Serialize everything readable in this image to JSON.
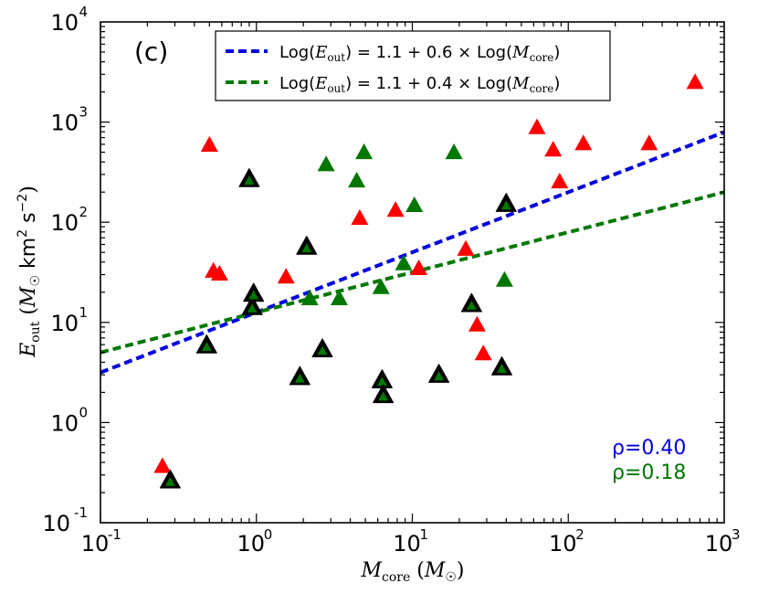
{
  "chart_data": {
    "type": "scatter",
    "panel_label": "(c)",
    "xlabel": "M_core (M_sun)",
    "ylabel": "E_out (M_sun km^2 s^-2)",
    "xscale": "log",
    "yscale": "log",
    "xlim": [
      0.1,
      1000
    ],
    "ylim": [
      0.1,
      10000
    ],
    "x_ticks": [
      {
        "base": "10",
        "exp": "-1",
        "value": 0.1
      },
      {
        "base": "10",
        "exp": "0",
        "value": 1
      },
      {
        "base": "10",
        "exp": "1",
        "value": 10
      },
      {
        "base": "10",
        "exp": "2",
        "value": 100
      },
      {
        "base": "10",
        "exp": "3",
        "value": 1000
      }
    ],
    "y_ticks": [
      {
        "base": "10",
        "exp": "-1",
        "value": 0.1
      },
      {
        "base": "10",
        "exp": "0",
        "value": 1
      },
      {
        "base": "10",
        "exp": "1",
        "value": 10
      },
      {
        "base": "10",
        "exp": "2",
        "value": 100
      },
      {
        "base": "10",
        "exp": "3",
        "value": 1000
      },
      {
        "base": "10",
        "exp": "4",
        "value": 10000
      }
    ],
    "legend_position": "top-center",
    "legend": [
      {
        "label": "Log(E_out) = 1.1 + 0.6 × Log(M_core)",
        "color": "#0000dd",
        "style": "dashed"
      },
      {
        "label": "Log(E_out) = 1.1 + 0.4 × Log(M_core)",
        "color": "#007700",
        "style": "dashed"
      }
    ],
    "fits": [
      {
        "name": "fit-0.6",
        "intercept": 1.1,
        "slope": 0.6,
        "color": "#0000dd"
      },
      {
        "name": "fit-0.4",
        "intercept": 1.1,
        "slope": 0.4,
        "color": "#007700"
      }
    ],
    "correlations": [
      {
        "text": "ρ=0.40",
        "color": "#0000dd"
      },
      {
        "text": "ρ=0.18",
        "color": "#007700"
      }
    ],
    "series": [
      {
        "name": "red",
        "color": "#ff0000",
        "outlined": false,
        "points": [
          [
            0.25,
            0.36
          ],
          [
            0.5,
            580
          ],
          [
            0.53,
            32
          ],
          [
            0.58,
            30
          ],
          [
            1.55,
            28
          ],
          [
            4.6,
            108
          ],
          [
            7.8,
            130
          ],
          [
            11,
            34
          ],
          [
            22,
            53
          ],
          [
            26,
            9.3
          ],
          [
            28.5,
            4.8
          ],
          [
            63,
            870
          ],
          [
            80,
            520
          ],
          [
            88,
            250
          ],
          [
            125,
            600
          ],
          [
            330,
            600
          ],
          [
            650,
            2450
          ]
        ]
      },
      {
        "name": "green",
        "color": "#007700",
        "outlined": false,
        "points": [
          [
            2.2,
            17
          ],
          [
            2.8,
            370
          ],
          [
            3.4,
            17
          ],
          [
            4.4,
            255
          ],
          [
            4.9,
            490
          ],
          [
            6.3,
            22
          ],
          [
            8.8,
            38
          ],
          [
            10.3,
            145
          ],
          [
            18.5,
            490
          ],
          [
            39,
            26
          ]
        ]
      },
      {
        "name": "green-outlined",
        "color": "#007700",
        "outlined": true,
        "points": [
          [
            0.28,
            0.26
          ],
          [
            0.48,
            5.8
          ],
          [
            0.9,
            265
          ],
          [
            0.94,
            14
          ],
          [
            0.96,
            19
          ],
          [
            1.9,
            2.8
          ],
          [
            2.1,
            56
          ],
          [
            2.65,
            5.3
          ],
          [
            6.4,
            2.6
          ],
          [
            6.5,
            1.85
          ],
          [
            14.8,
            2.95
          ],
          [
            24,
            15
          ],
          [
            37.5,
            3.5
          ],
          [
            40,
            150
          ]
        ]
      }
    ]
  }
}
